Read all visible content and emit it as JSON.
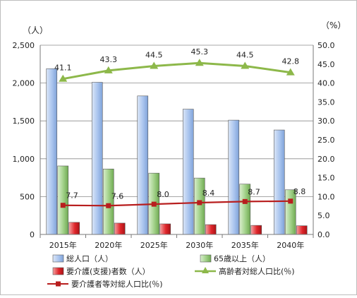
{
  "chart_data": {
    "type": "bar",
    "categories": [
      "2015年",
      "2020年",
      "2025年",
      "2030年",
      "2035年",
      "2040年"
    ],
    "series": [
      {
        "name": "総人口（人）",
        "kind": "bar",
        "axis": "left",
        "color": "#a9c4ee",
        "values": [
          2190,
          2010,
          1830,
          1655,
          1510,
          1380
        ]
      },
      {
        "name": "65歳以上（人）",
        "kind": "bar",
        "axis": "left",
        "color": "#9fcf86",
        "values": [
          905,
          865,
          810,
          745,
          665,
          590
        ]
      },
      {
        "name": "要介護(支援)者数（人）",
        "kind": "bar",
        "axis": "left",
        "color": "#e0262b",
        "values": [
          160,
          150,
          140,
          130,
          120,
          115
        ]
      },
      {
        "name": "高齢者対総人口比(％)",
        "kind": "line",
        "axis": "right",
        "color": "#8db84a",
        "values": [
          41.1,
          43.3,
          44.5,
          45.3,
          44.5,
          42.8
        ],
        "labels": [
          "41.1",
          "43.3",
          "44.5",
          "45.3",
          "44.5",
          "42.8"
        ]
      },
      {
        "name": "要介護者等対総人口比(％)",
        "kind": "line",
        "axis": "right",
        "color": "#b81e1e",
        "values": [
          7.7,
          7.6,
          8.0,
          8.4,
          8.7,
          8.8
        ],
        "labels": [
          "7.7",
          "7.6",
          "8.0",
          "8.4",
          "8.7",
          "8.8"
        ]
      }
    ],
    "left_axis": {
      "unit": "（人）",
      "ylim": [
        0,
        2500
      ],
      "ticks": [
        0,
        500,
        1000,
        1500,
        2000,
        2500
      ],
      "tick_labels": [
        "0",
        "500",
        "1,000",
        "1,500",
        "2,000",
        "2,500"
      ]
    },
    "right_axis": {
      "unit": "（%）",
      "ylim": [
        0,
        50
      ],
      "ticks": [
        0,
        5,
        10,
        15,
        20,
        25,
        30,
        35,
        40,
        45,
        50
      ],
      "tick_labels": [
        "0.0",
        "5.0",
        "10.0",
        "15.0",
        "20.0",
        "25.0",
        "30.0",
        "35.0",
        "40.0",
        "45.0",
        "50.0"
      ]
    },
    "grid": true,
    "legend_position": "bottom"
  }
}
